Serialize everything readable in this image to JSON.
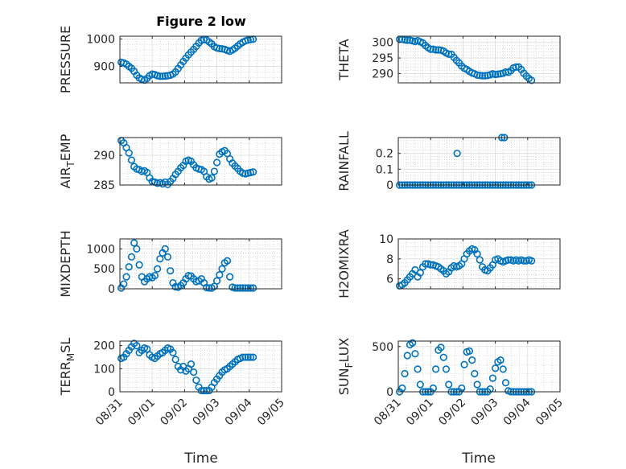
{
  "figure": {
    "title": "Figure 2 low"
  },
  "x_time_ticks": [
    "08/31",
    "09/01",
    "09/02",
    "09/03",
    "09/04",
    "09/05"
  ],
  "chart_data": [
    {
      "id": "pressure",
      "type": "scatter",
      "title": "Figure 2 low",
      "ylabel": "PRESSURE",
      "ylabel_sub": "",
      "ylabel_rest": "",
      "xlim": [
        0,
        5
      ],
      "ylim": [
        840,
        1010
      ],
      "yticks": [
        900,
        1000
      ],
      "xlabel": "",
      "x": [
        0.04,
        0.12,
        0.2,
        0.28,
        0.36,
        0.44,
        0.52,
        0.6,
        0.68,
        0.76,
        0.84,
        0.92,
        1.0,
        1.08,
        1.16,
        1.24,
        1.32,
        1.4,
        1.48,
        1.56,
        1.64,
        1.72,
        1.8,
        1.88,
        1.96,
        2.04,
        2.12,
        2.2,
        2.28,
        2.36,
        2.44,
        2.52,
        2.6,
        2.68,
        2.76,
        2.84,
        2.92,
        3.0,
        3.08,
        3.16,
        3.24,
        3.32,
        3.4,
        3.48,
        3.56,
        3.64,
        3.72,
        3.8,
        3.88,
        3.96,
        4.04,
        4.12
      ],
      "y": [
        915,
        913,
        908,
        900,
        893,
        882,
        868,
        858,
        853,
        850,
        856,
        866,
        872,
        870,
        866,
        864,
        864,
        865,
        866,
        868,
        872,
        880,
        892,
        905,
        918,
        930,
        942,
        952,
        962,
        973,
        985,
        995,
        998,
        996,
        989,
        982,
        972,
        967,
        965,
        964,
        962,
        958,
        955,
        960,
        966,
        974,
        982,
        988,
        993,
        996,
        998,
        999
      ]
    },
    {
      "id": "theta",
      "type": "scatter",
      "title": "",
      "ylabel": "THETA",
      "ylabel_sub": "",
      "ylabel_rest": "",
      "xlim": [
        0,
        5
      ],
      "ylim": [
        287,
        302
      ],
      "yticks": [
        290,
        295,
        300
      ],
      "xlabel": "",
      "x": [
        0.04,
        0.12,
        0.2,
        0.28,
        0.36,
        0.44,
        0.52,
        0.6,
        0.68,
        0.76,
        0.84,
        0.92,
        1.0,
        1.08,
        1.16,
        1.24,
        1.32,
        1.4,
        1.48,
        1.56,
        1.64,
        1.72,
        1.8,
        1.88,
        1.96,
        2.04,
        2.12,
        2.2,
        2.28,
        2.36,
        2.44,
        2.52,
        2.6,
        2.68,
        2.76,
        2.84,
        2.92,
        3.0,
        3.08,
        3.16,
        3.24,
        3.32,
        3.4,
        3.48,
        3.56,
        3.64,
        3.72,
        3.8,
        3.88,
        3.96,
        4.04,
        4.12
      ],
      "y": [
        301,
        301,
        300.8,
        300.7,
        300.7,
        300.5,
        300.3,
        300.6,
        300.2,
        299.8,
        299,
        298.3,
        297.8,
        297.8,
        297.6,
        297.6,
        297.5,
        297.2,
        296.6,
        296.2,
        296.2,
        295.2,
        294.2,
        293.4,
        292.4,
        291.7,
        291.3,
        290.7,
        290.2,
        289.9,
        289.5,
        289.4,
        289.3,
        289.3,
        289.4,
        289.6,
        289.9,
        289.7,
        289.8,
        289.9,
        290.1,
        290.5,
        290.4,
        290.9,
        291.8,
        292.1,
        292.1,
        291.3,
        290.1,
        289.2,
        288.4,
        287.8
      ]
    },
    {
      "id": "air_temp",
      "type": "scatter",
      "title": "",
      "ylabel": "AIR",
      "ylabel_sub": "T",
      "ylabel_rest": "EMP",
      "xlim": [
        0,
        5
      ],
      "ylim": [
        285,
        293
      ],
      "yticks": [
        285,
        290
      ],
      "xlabel": "",
      "x": [
        0.04,
        0.12,
        0.2,
        0.28,
        0.36,
        0.44,
        0.52,
        0.6,
        0.68,
        0.76,
        0.84,
        0.92,
        1.0,
        1.08,
        1.16,
        1.24,
        1.32,
        1.4,
        1.48,
        1.56,
        1.64,
        1.72,
        1.8,
        1.88,
        1.96,
        2.04,
        2.12,
        2.2,
        2.28,
        2.36,
        2.44,
        2.52,
        2.6,
        2.68,
        2.76,
        2.84,
        2.92,
        3.0,
        3.08,
        3.16,
        3.24,
        3.32,
        3.4,
        3.48,
        3.56,
        3.64,
        3.72,
        3.8,
        3.88,
        3.96,
        4.04,
        4.12
      ],
      "y": [
        292.5,
        292.1,
        291.3,
        290.4,
        289.2,
        288.1,
        287.7,
        287.6,
        287.3,
        287.4,
        287.1,
        286.2,
        285.6,
        285.5,
        285.3,
        285.4,
        285.2,
        285.5,
        285.1,
        285.6,
        286.1,
        286.8,
        287.3,
        287.9,
        288.3,
        289,
        289.2,
        289,
        288.4,
        287.9,
        287.7,
        287.6,
        287.3,
        286.4,
        286,
        286.2,
        287.3,
        288.8,
        290.2,
        290.6,
        290.8,
        290.3,
        289.4,
        288.7,
        288.2,
        287.8,
        287.3,
        287,
        286.9,
        287,
        287.1,
        287.2
      ]
    },
    {
      "id": "rainfall",
      "type": "scatter",
      "title": "",
      "ylabel": "RAINFALL",
      "ylabel_sub": "",
      "ylabel_rest": "",
      "xlim": [
        0,
        5
      ],
      "ylim": [
        0,
        0.3
      ],
      "yticks": [
        0,
        0.1,
        0.2
      ],
      "xlabel": "",
      "x": [
        0.04,
        0.12,
        0.2,
        0.28,
        0.36,
        0.44,
        0.52,
        0.6,
        0.68,
        0.76,
        0.84,
        0.92,
        1.0,
        1.08,
        1.16,
        1.24,
        1.32,
        1.4,
        1.48,
        1.56,
        1.64,
        1.72,
        1.8,
        1.88,
        1.96,
        2.04,
        2.12,
        2.2,
        2.28,
        2.36,
        2.44,
        2.52,
        2.6,
        2.68,
        2.76,
        2.84,
        2.92,
        3.0,
        3.08,
        3.16,
        3.24,
        3.32,
        3.4,
        3.48,
        3.56,
        3.64,
        3.72,
        3.8,
        3.88,
        3.96,
        4.04,
        4.12,
        1.82,
        3.2,
        3.28
      ],
      "y": [
        0,
        0,
        0,
        0,
        0,
        0,
        0,
        0,
        0,
        0,
        0,
        0,
        0,
        0,
        0,
        0,
        0,
        0,
        0,
        0,
        0,
        0,
        0,
        0,
        0,
        0,
        0,
        0,
        0,
        0,
        0,
        0,
        0,
        0,
        0,
        0,
        0,
        0,
        0,
        0,
        0,
        0,
        0,
        0,
        0,
        0,
        0,
        0,
        0,
        0,
        0,
        0,
        0.2,
        0.3,
        0.3
      ]
    },
    {
      "id": "mixdepth",
      "type": "scatter",
      "title": "",
      "ylabel": "MIXDEPTH",
      "ylabel_sub": "",
      "ylabel_rest": "",
      "xlim": [
        0,
        5
      ],
      "ylim": [
        0,
        1250
      ],
      "yticks": [
        0,
        500,
        1000
      ],
      "xlabel": "",
      "x": [
        0.04,
        0.12,
        0.2,
        0.28,
        0.36,
        0.44,
        0.52,
        0.6,
        0.68,
        0.76,
        0.84,
        0.92,
        1.0,
        1.08,
        1.16,
        1.24,
        1.32,
        1.4,
        1.48,
        1.56,
        1.64,
        1.72,
        1.8,
        1.88,
        1.96,
        2.04,
        2.12,
        2.2,
        2.28,
        2.36,
        2.44,
        2.52,
        2.6,
        2.68,
        2.76,
        2.84,
        2.92,
        3.0,
        3.08,
        3.16,
        3.24,
        3.32,
        3.4,
        3.48,
        3.56,
        3.64,
        3.72,
        3.8,
        3.88,
        3.96,
        4.04,
        4.12
      ],
      "y": [
        20,
        120,
        300,
        550,
        800,
        1150,
        1000,
        600,
        300,
        180,
        250,
        300,
        280,
        330,
        500,
        750,
        900,
        1000,
        800,
        450,
        150,
        50,
        40,
        80,
        150,
        250,
        330,
        320,
        250,
        180,
        200,
        250,
        150,
        30,
        20,
        20,
        60,
        200,
        350,
        500,
        650,
        700,
        300,
        40,
        20,
        20,
        20,
        20,
        20,
        20,
        20,
        20
      ]
    },
    {
      "id": "h2omixra",
      "type": "scatter",
      "title": "",
      "ylabel": "H2OMIXRA",
      "ylabel_sub": "",
      "ylabel_rest": "",
      "xlim": [
        0,
        5
      ],
      "ylim": [
        5,
        10
      ],
      "yticks": [
        6,
        8,
        10
      ],
      "xlabel": "",
      "x": [
        0.04,
        0.12,
        0.2,
        0.28,
        0.36,
        0.44,
        0.52,
        0.6,
        0.68,
        0.76,
        0.84,
        0.92,
        1.0,
        1.08,
        1.16,
        1.24,
        1.32,
        1.4,
        1.48,
        1.56,
        1.64,
        1.72,
        1.8,
        1.88,
        1.96,
        2.04,
        2.12,
        2.2,
        2.28,
        2.36,
        2.44,
        2.52,
        2.6,
        2.68,
        2.76,
        2.84,
        2.92,
        3.0,
        3.08,
        3.16,
        3.24,
        3.32,
        3.4,
        3.48,
        3.56,
        3.64,
        3.72,
        3.8,
        3.88,
        3.96,
        4.04,
        4.12
      ],
      "y": [
        5.3,
        5.4,
        5.6,
        5.9,
        6.2,
        6.5,
        6.9,
        6.2,
        6.6,
        7.2,
        7.5,
        7.5,
        7.4,
        7.4,
        7.3,
        7.2,
        7.0,
        6.8,
        6.5,
        6.7,
        7.1,
        7.3,
        7.2,
        7.3,
        7.5,
        8.0,
        8.5,
        8.8,
        9.0,
        8.9,
        8.5,
        7.9,
        7.2,
        6.9,
        6.8,
        7.1,
        7.4,
        7.9,
        8.0,
        7.8,
        7.7,
        7.8,
        7.9,
        7.9,
        7.8,
        7.9,
        7.8,
        7.9,
        7.8,
        7.8,
        7.9,
        7.8
      ]
    },
    {
      "id": "terr_msl",
      "type": "scatter",
      "title": "",
      "ylabel": "TERR",
      "ylabel_sub": "M",
      "ylabel_rest": "SL",
      "xlim": [
        0,
        5
      ],
      "ylim": [
        0,
        220
      ],
      "yticks": [
        0,
        100,
        200
      ],
      "xlabel": "Time",
      "x": [
        0.04,
        0.12,
        0.2,
        0.28,
        0.36,
        0.44,
        0.52,
        0.6,
        0.68,
        0.76,
        0.84,
        0.92,
        1.0,
        1.08,
        1.16,
        1.24,
        1.32,
        1.4,
        1.48,
        1.56,
        1.64,
        1.72,
        1.8,
        1.88,
        1.96,
        2.04,
        2.12,
        2.2,
        2.28,
        2.36,
        2.44,
        2.52,
        2.6,
        2.68,
        2.76,
        2.84,
        2.92,
        3.0,
        3.08,
        3.16,
        3.24,
        3.32,
        3.4,
        3.48,
        3.56,
        3.64,
        3.72,
        3.8,
        3.88,
        3.96,
        4.04,
        4.12
      ],
      "y": [
        145,
        150,
        165,
        180,
        195,
        210,
        200,
        170,
        180,
        190,
        185,
        160,
        150,
        145,
        155,
        165,
        170,
        180,
        190,
        185,
        170,
        140,
        110,
        95,
        110,
        90,
        100,
        120,
        85,
        50,
        20,
        5,
        5,
        5,
        5,
        20,
        40,
        55,
        70,
        85,
        95,
        100,
        110,
        120,
        130,
        140,
        145,
        150,
        150,
        150,
        150,
        150
      ]
    },
    {
      "id": "sun_flux",
      "type": "scatter",
      "title": "",
      "ylabel": "SUN",
      "ylabel_sub": "F",
      "ylabel_rest": "LUX",
      "xlim": [
        0,
        5
      ],
      "ylim": [
        0,
        560
      ],
      "yticks": [
        0,
        500
      ],
      "xlabel": "Time",
      "x": [
        0.04,
        0.12,
        0.2,
        0.28,
        0.36,
        0.44,
        0.52,
        0.6,
        0.68,
        0.76,
        0.84,
        0.92,
        1.0,
        1.08,
        1.16,
        1.24,
        1.32,
        1.4,
        1.48,
        1.56,
        1.64,
        1.72,
        1.8,
        1.88,
        1.96,
        2.04,
        2.12,
        2.2,
        2.28,
        2.36,
        2.44,
        2.52,
        2.6,
        2.68,
        2.76,
        2.84,
        2.92,
        3.0,
        3.08,
        3.16,
        3.24,
        3.32,
        3.4,
        3.48,
        3.56,
        3.64,
        3.72,
        3.8,
        3.88,
        3.96,
        4.04,
        4.12
      ],
      "y": [
        0,
        40,
        200,
        400,
        520,
        540,
        420,
        250,
        80,
        0,
        0,
        0,
        0,
        40,
        250,
        460,
        490,
        380,
        250,
        80,
        0,
        0,
        0,
        0,
        40,
        300,
        440,
        450,
        350,
        200,
        80,
        0,
        0,
        0,
        0,
        30,
        150,
        260,
        330,
        350,
        250,
        100,
        10,
        0,
        0,
        0,
        0,
        0,
        0,
        0,
        0,
        0
      ]
    }
  ]
}
